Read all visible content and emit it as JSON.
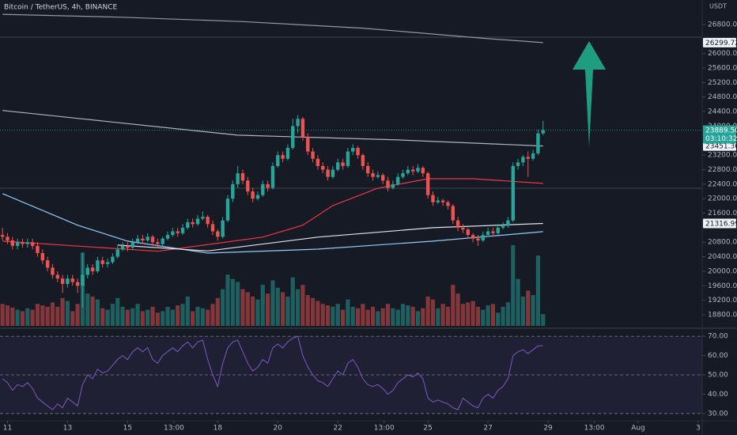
{
  "header": {
    "title": "Bitcoin / TetherUS, 4h, BINANCE"
  },
  "chart_data": [
    {
      "type": "candlestick",
      "unit": "USDT",
      "up_color": "#26a69a",
      "down_color": "#ef5350",
      "xlim": [
        -0.5,
        139.8
      ],
      "xticks": [
        {
          "value": 1,
          "label": "11"
        },
        {
          "value": 13,
          "label": "13"
        },
        {
          "value": 25,
          "label": "15"
        },
        {
          "value": 34.25,
          "label": "13:00"
        },
        {
          "value": 43,
          "label": "18"
        },
        {
          "value": 55,
          "label": "20"
        },
        {
          "value": 67,
          "label": "22"
        },
        {
          "value": 76.25,
          "label": "13:00"
        },
        {
          "value": 85,
          "label": "25"
        },
        {
          "value": 97,
          "label": "27"
        },
        {
          "value": 109,
          "label": "29"
        },
        {
          "value": 118.25,
          "label": "13:00"
        },
        {
          "value": 127,
          "label": "Aug"
        },
        {
          "value": 139,
          "label": "3"
        }
      ],
      "ylim": [
        18495,
        27475
      ],
      "yticks": [
        {
          "value": 18800,
          "label": "18800.00"
        },
        {
          "value": 19200,
          "label": "19200.00"
        },
        {
          "value": 19600,
          "label": "19600.00"
        },
        {
          "value": 20000,
          "label": "20000.00"
        },
        {
          "value": 20400,
          "label": "20400.00"
        },
        {
          "value": 20800,
          "label": "20800.00"
        },
        {
          "value": 21600,
          "label": "21600.00"
        },
        {
          "value": 22000,
          "label": "22000.00"
        },
        {
          "value": 22400,
          "label": "22400.00"
        },
        {
          "value": 22800,
          "label": "22800.00"
        },
        {
          "value": 23200,
          "label": "23200.00"
        },
        {
          "value": 24000,
          "label": "24000.00"
        },
        {
          "value": 24400,
          "label": "24400.00"
        },
        {
          "value": 24800,
          "label": "24800.00"
        },
        {
          "value": 25200,
          "label": "25200.00"
        },
        {
          "value": 25600,
          "label": "25600.00"
        },
        {
          "value": 26000,
          "label": "26000.00"
        },
        {
          "value": 26800,
          "label": "26800.00"
        }
      ],
      "last_price": {
        "value": 23889.5,
        "label": "23889.50"
      },
      "countdown": "03:10:32",
      "candles": [
        [
          21000,
          21200,
          20850,
          20950
        ],
        [
          20950,
          21050,
          20750,
          20850
        ],
        [
          20850,
          20950,
          20600,
          20700
        ],
        [
          20700,
          20900,
          20600,
          20800
        ],
        [
          20800,
          20900,
          20650,
          20750
        ],
        [
          20750,
          20900,
          20650,
          20800
        ],
        [
          20800,
          20900,
          20600,
          20700
        ],
        [
          20700,
          20800,
          20400,
          20500
        ],
        [
          20500,
          20600,
          20200,
          20300
        ],
        [
          20300,
          20400,
          20000,
          20100
        ],
        [
          20100,
          20200,
          19800,
          19900
        ],
        [
          19900,
          20000,
          19700,
          19800
        ],
        [
          19800,
          19900,
          19400,
          19650
        ],
        [
          19650,
          19900,
          19550,
          19800
        ],
        [
          19800,
          19900,
          19600,
          19700
        ],
        [
          19700,
          19800,
          19400,
          19600
        ],
        [
          19600,
          20500,
          19000,
          19900
        ],
        [
          19900,
          20200,
          19800,
          20100
        ],
        [
          20100,
          20200,
          19900,
          20000
        ],
        [
          20000,
          20400,
          19950,
          20300
        ],
        [
          20300,
          20400,
          20100,
          20200
        ],
        [
          20200,
          20350,
          20100,
          20250
        ],
        [
          20250,
          20500,
          20200,
          20400
        ],
        [
          20400,
          20700,
          20350,
          20600
        ],
        [
          20600,
          20800,
          20550,
          20700
        ],
        [
          20700,
          20800,
          20550,
          20650
        ],
        [
          20650,
          20900,
          20600,
          20800
        ],
        [
          20800,
          21000,
          20750,
          20900
        ],
        [
          20900,
          21000,
          20750,
          20850
        ],
        [
          20850,
          21050,
          20800,
          20950
        ],
        [
          20950,
          21000,
          20700,
          20800
        ],
        [
          20800,
          20900,
          20650,
          20750
        ],
        [
          20750,
          20950,
          20700,
          20900
        ],
        [
          20900,
          21100,
          20850,
          21000
        ],
        [
          21000,
          21200,
          20950,
          21100
        ],
        [
          21100,
          21200,
          20950,
          21050
        ],
        [
          21050,
          21300,
          21000,
          21200
        ],
        [
          21200,
          21450,
          21150,
          21350
        ],
        [
          21350,
          21450,
          21200,
          21300
        ],
        [
          21300,
          21550,
          21250,
          21450
        ],
        [
          21450,
          21650,
          21400,
          21500
        ],
        [
          21500,
          21550,
          21200,
          21300
        ],
        [
          21300,
          21400,
          21000,
          21100
        ],
        [
          21100,
          21150,
          20850,
          20950
        ],
        [
          20950,
          21500,
          20900,
          21400
        ],
        [
          21400,
          22100,
          21350,
          22000
        ],
        [
          22000,
          22500,
          21900,
          22400
        ],
        [
          22400,
          22900,
          22300,
          22700
        ],
        [
          22700,
          22800,
          22400,
          22500
        ],
        [
          22500,
          22600,
          22100,
          22200
        ],
        [
          22200,
          22300,
          21900,
          22000
        ],
        [
          22000,
          22200,
          21950,
          22100
        ],
        [
          22100,
          22500,
          22050,
          22400
        ],
        [
          22400,
          22500,
          22200,
          22300
        ],
        [
          22300,
          23000,
          22250,
          22900
        ],
        [
          22900,
          23300,
          22850,
          23200
        ],
        [
          23200,
          23300,
          23000,
          23100
        ],
        [
          23100,
          23500,
          23050,
          23400
        ],
        [
          23400,
          24200,
          23350,
          24000
        ],
        [
          24000,
          24300,
          23800,
          24200
        ],
        [
          24200,
          24250,
          23600,
          23700
        ],
        [
          23700,
          23800,
          23200,
          23300
        ],
        [
          23300,
          23400,
          23000,
          23100
        ],
        [
          23100,
          23200,
          22800,
          22900
        ],
        [
          22900,
          23000,
          22700,
          22800
        ],
        [
          22800,
          22900,
          22500,
          22600
        ],
        [
          22600,
          22900,
          22550,
          22800
        ],
        [
          22800,
          23100,
          22750,
          23000
        ],
        [
          23000,
          23100,
          22800,
          22900
        ],
        [
          22900,
          23400,
          22850,
          23300
        ],
        [
          23300,
          23500,
          23200,
          23400
        ],
        [
          23400,
          23450,
          23100,
          23200
        ],
        [
          23200,
          23250,
          22800,
          22900
        ],
        [
          22900,
          23000,
          22600,
          22700
        ],
        [
          22700,
          22800,
          22500,
          22600
        ],
        [
          22600,
          22750,
          22550,
          22650
        ],
        [
          22650,
          22700,
          22400,
          22500
        ],
        [
          22500,
          22600,
          22200,
          22300
        ],
        [
          22300,
          22500,
          22250,
          22400
        ],
        [
          22400,
          22700,
          22350,
          22600
        ],
        [
          22600,
          22800,
          22550,
          22700
        ],
        [
          22700,
          22900,
          22650,
          22800
        ],
        [
          22800,
          22900,
          22650,
          22750
        ],
        [
          22750,
          22950,
          22700,
          22850
        ],
        [
          22850,
          22900,
          22600,
          22700
        ],
        [
          22700,
          22750,
          22000,
          22100
        ],
        [
          22100,
          22200,
          21800,
          21900
        ],
        [
          21900,
          22050,
          21850,
          21950
        ],
        [
          21950,
          22000,
          21800,
          21900
        ],
        [
          21900,
          21950,
          21700,
          21800
        ],
        [
          21800,
          21850,
          21300,
          21400
        ],
        [
          21400,
          21500,
          21100,
          21200
        ],
        [
          21200,
          21300,
          21050,
          21150
        ],
        [
          21150,
          21200,
          20900,
          21000
        ],
        [
          21000,
          21050,
          20800,
          20900
        ],
        [
          20900,
          21000,
          20700,
          20850
        ],
        [
          20850,
          21100,
          20800,
          21000
        ],
        [
          21000,
          21200,
          20950,
          21100
        ],
        [
          21100,
          21200,
          20950,
          21050
        ],
        [
          21050,
          21300,
          21000,
          21200
        ],
        [
          21200,
          21350,
          21150,
          21250
        ],
        [
          21250,
          21500,
          21200,
          21400
        ],
        [
          21400,
          23000,
          21350,
          22900
        ],
        [
          22900,
          23100,
          22800,
          23000
        ],
        [
          23000,
          23200,
          22900,
          23150
        ],
        [
          23150,
          23300,
          22600,
          23100
        ],
        [
          23100,
          23350,
          23050,
          23250
        ],
        [
          23250,
          23900,
          23200,
          23800
        ],
        [
          23800,
          24150,
          23750,
          23889.5
        ]
      ],
      "volume": [
        30,
        28,
        25,
        22,
        20,
        24,
        22,
        30,
        28,
        26,
        32,
        26,
        38,
        34,
        20,
        30,
        100,
        44,
        40,
        36,
        24,
        22,
        30,
        38,
        26,
        22,
        24,
        30,
        20,
        22,
        26,
        18,
        20,
        26,
        22,
        28,
        30,
        40,
        20,
        26,
        24,
        22,
        30,
        38,
        50,
        70,
        64,
        60,
        50,
        46,
        40,
        36,
        56,
        44,
        62,
        52,
        46,
        40,
        66,
        50,
        56,
        42,
        38,
        34,
        30,
        28,
        26,
        30,
        22,
        36,
        26,
        24,
        30,
        22,
        26,
        20,
        24,
        30,
        24,
        22,
        30,
        28,
        26,
        20,
        24,
        40,
        36,
        24,
        30,
        26,
        56,
        44,
        30,
        32,
        34,
        26,
        22,
        28,
        30,
        18,
        26,
        32,
        110,
        64,
        40,
        48,
        42,
        96,
        16
      ],
      "series": [
        {
          "color": "#9598a1",
          "show_last": true,
          "x": [
            0,
            24,
            48,
            72,
            96,
            108
          ],
          "values": [
            27080,
            27000,
            26880,
            26700,
            26420,
            26299.72
          ]
        },
        {
          "color": "#b2b5be",
          "show_last": true,
          "x": [
            0,
            16,
            47,
            79,
            108
          ],
          "values": [
            24430,
            24200,
            23750,
            23620,
            23451.36
          ]
        },
        {
          "color": "#f23645",
          "show_last": false,
          "x": [
            0,
            31,
            52,
            60,
            66,
            75,
            85,
            94,
            108
          ],
          "values": [
            20830,
            20550,
            20940,
            21270,
            21810,
            22290,
            22550,
            22550,
            22420
          ]
        },
        {
          "color": "#90cbf9",
          "show_last": false,
          "x": [
            0,
            15,
            25,
            41,
            63,
            86,
            108
          ],
          "values": [
            22140,
            21270,
            20830,
            20500,
            20610,
            20830,
            21090
          ]
        },
        {
          "color": "#e0e3eb",
          "show_last": true,
          "x": [
            23,
            41,
            63,
            86,
            108
          ],
          "values": [
            20720,
            20560,
            20940,
            21200,
            21316.99
          ]
        }
      ]
    },
    {
      "type": "line",
      "color": "#7e57c2",
      "ylim": [
        26.3,
        72.9
      ],
      "yticks": [
        {
          "value": 30,
          "label": "30.00"
        },
        {
          "value": 40,
          "label": "40.00"
        },
        {
          "value": 50,
          "label": "50.00"
        },
        {
          "value": 60,
          "label": "60.00"
        },
        {
          "value": 70,
          "label": "70.00"
        }
      ],
      "levels": [
        30,
        50,
        70
      ],
      "values": [
        48,
        46,
        42,
        45,
        44,
        46,
        43,
        38,
        36,
        34,
        32,
        35,
        33,
        38,
        36,
        34,
        45,
        50,
        48,
        53,
        51,
        52,
        55,
        58,
        60,
        58,
        62,
        64,
        62,
        64,
        58,
        56,
        60,
        62,
        64,
        62,
        65,
        67,
        64,
        67,
        68,
        58,
        50,
        44,
        56,
        64,
        67,
        68,
        62,
        56,
        52,
        54,
        58,
        56,
        64,
        66,
        64,
        67,
        69,
        70,
        60,
        54,
        50,
        47,
        46,
        44,
        48,
        52,
        50,
        56,
        58,
        54,
        48,
        45,
        44,
        45,
        43,
        40,
        42,
        46,
        48,
        50,
        49,
        51,
        48,
        38,
        36,
        37,
        36,
        35,
        33,
        32,
        38,
        36,
        34,
        33,
        38,
        40,
        38,
        42,
        44,
        48,
        60,
        62,
        63,
        61,
        63,
        65,
        65
      ]
    }
  ]
}
